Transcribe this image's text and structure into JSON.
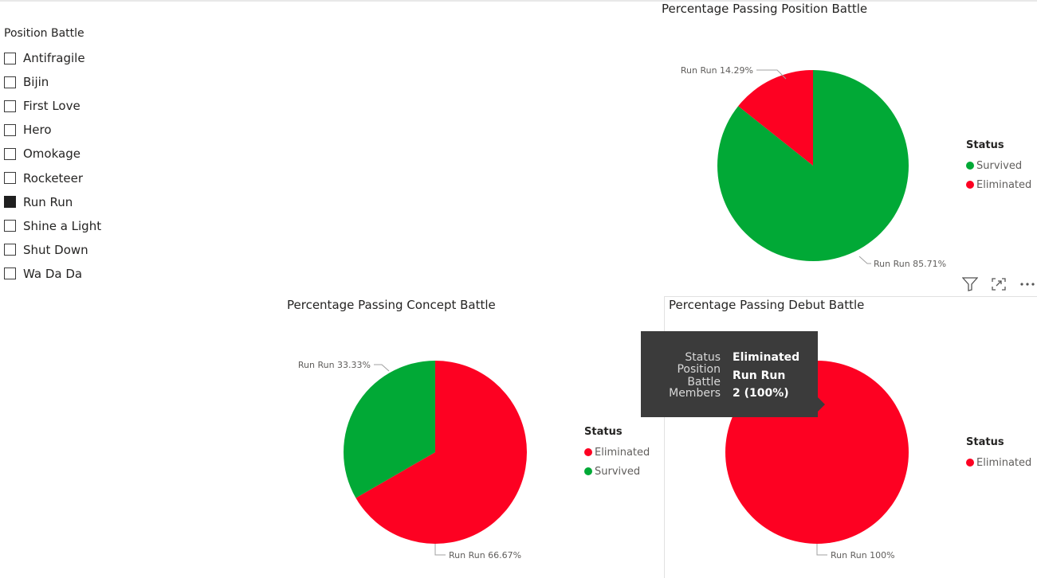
{
  "slicer": {
    "title": "Position Battle",
    "items": [
      {
        "label": "Antifragile",
        "checked": false
      },
      {
        "label": "Bijin",
        "checked": false
      },
      {
        "label": "First Love",
        "checked": false
      },
      {
        "label": "Hero",
        "checked": false
      },
      {
        "label": "Omokage",
        "checked": false
      },
      {
        "label": "Rocketeer",
        "checked": false
      },
      {
        "label": "Run Run",
        "checked": true
      },
      {
        "label": "Shine a Light",
        "checked": false
      },
      {
        "label": "Shut Down",
        "checked": false
      },
      {
        "label": "Wa Da Da",
        "checked": false
      }
    ]
  },
  "colors": {
    "survived": "#01a936",
    "eliminated": "#fd0122"
  },
  "chart_data": [
    {
      "type": "pie",
      "title": "Percentage Passing Position Battle",
      "legend_title": "Status",
      "legend": [
        "Survived",
        "Eliminated"
      ],
      "slices": [
        {
          "category": "Run Run",
          "status": "Survived",
          "percent": 85.71,
          "label": "Run Run 85.71%"
        },
        {
          "category": "Run Run",
          "status": "Eliminated",
          "percent": 14.29,
          "label": "Run Run 14.29%"
        }
      ]
    },
    {
      "type": "pie",
      "title": "Percentage Passing Concept Battle",
      "legend_title": "Status",
      "legend": [
        "Eliminated",
        "Survived"
      ],
      "slices": [
        {
          "category": "Run Run",
          "status": "Eliminated",
          "percent": 66.67,
          "label": "Run Run 66.67%"
        },
        {
          "category": "Run Run",
          "status": "Survived",
          "percent": 33.33,
          "label": "Run Run 33.33%"
        }
      ]
    },
    {
      "type": "pie",
      "title": "Percentage Passing Debut Battle",
      "legend_title": "Status",
      "legend": [
        "Eliminated"
      ],
      "slices": [
        {
          "category": "Run Run",
          "status": "Eliminated",
          "percent": 100,
          "label": "Run Run 100%"
        }
      ]
    }
  ],
  "tooltip": {
    "rows": [
      {
        "key": "Status",
        "value": "Eliminated"
      },
      {
        "key": "Position Battle",
        "value": "Run Run"
      },
      {
        "key": "Members",
        "value": "2 (100%)"
      }
    ]
  },
  "visual_header": {
    "icons": [
      "filter-icon",
      "focus-mode-icon",
      "more-options-icon"
    ]
  }
}
